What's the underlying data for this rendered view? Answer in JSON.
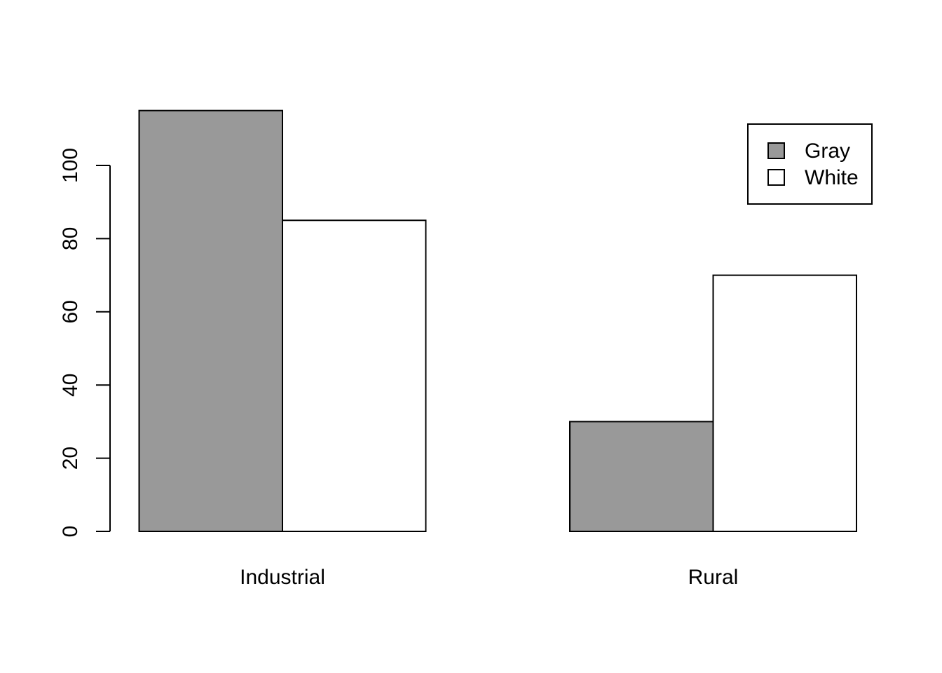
{
  "chart_data": {
    "type": "bar",
    "layout": "grouped",
    "categories": [
      "Industrial",
      "Rural"
    ],
    "series": [
      {
        "name": "Gray",
        "values": [
          115,
          30
        ],
        "color": "#999999"
      },
      {
        "name": "White",
        "values": [
          85,
          70
        ],
        "color": "#ffffff"
      }
    ],
    "y_ticks": [
      "0",
      "20",
      "40",
      "60",
      "80",
      "100"
    ],
    "ylim": [
      0,
      115
    ],
    "title": "",
    "xlabel": "",
    "ylabel": "",
    "grid": false,
    "legend": {
      "position": "top-right",
      "entries": [
        "Gray",
        "White"
      ]
    }
  }
}
